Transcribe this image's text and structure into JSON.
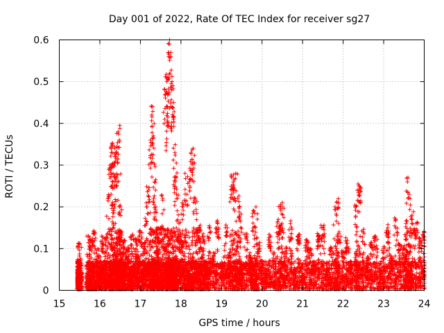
{
  "chart_data": {
    "type": "scatter",
    "title": "Day 001 of 2022, Rate Of TEC Index for receiver sg27",
    "xlabel": "GPS time / hours",
    "ylabel": "ROTI / TECUs",
    "xlim": [
      15,
      24
    ],
    "ylim": [
      0,
      0.6
    ],
    "xticks": [
      "15",
      "16",
      "17",
      "18",
      "19",
      "20",
      "21",
      "22",
      "23",
      "24"
    ],
    "yticks": [
      "0",
      "0.1",
      "0.2",
      "0.3",
      "0.4",
      "0.5",
      "0.6"
    ],
    "grid": true,
    "marker": "+",
    "color": "#ff0000",
    "series": [
      {
        "name": "ROTI",
        "x": [
          15.45,
          15.46,
          15.47,
          15.48,
          15.5,
          15.52,
          15.7,
          15.72,
          15.75,
          15.78,
          15.8,
          15.85,
          15.9,
          15.95,
          16.0,
          16.05,
          16.1,
          16.15,
          16.2,
          16.25,
          16.28,
          16.3,
          16.32,
          16.35,
          16.38,
          16.4,
          16.42,
          16.45,
          16.48,
          16.5,
          16.52,
          16.55,
          16.58,
          16.6,
          16.65,
          16.7,
          16.75,
          16.8,
          16.85,
          16.9,
          16.95,
          17.0,
          17.05,
          17.1,
          17.15,
          17.2,
          17.25,
          17.28,
          17.3,
          17.32,
          17.35,
          17.38,
          17.4,
          17.42,
          17.45,
          17.5,
          17.55,
          17.6,
          17.62,
          17.65,
          17.68,
          17.7,
          17.72,
          17.75,
          17.78,
          17.8,
          17.82,
          17.85,
          17.88,
          17.9,
          17.95,
          18.0,
          18.05,
          18.1,
          18.15,
          18.2,
          18.25,
          18.3,
          18.35,
          18.4,
          18.45,
          18.5,
          18.55,
          18.6,
          18.65,
          18.7,
          18.8,
          18.9,
          19.0,
          19.1,
          19.2,
          19.25,
          19.3,
          19.35,
          19.4,
          19.45,
          19.5,
          19.6,
          19.7,
          19.75,
          19.8,
          19.85,
          19.9,
          20.0,
          20.1,
          20.2,
          20.3,
          20.4,
          20.45,
          20.5,
          20.6,
          20.7,
          20.8,
          20.9,
          21.0,
          21.1,
          21.2,
          21.3,
          21.4,
          21.5,
          21.6,
          21.7,
          21.8,
          21.85,
          21.9,
          22.0,
          22.1,
          22.2,
          22.3,
          22.35,
          22.4,
          22.5,
          22.6,
          22.7,
          22.8,
          22.9,
          23.0,
          23.1,
          23.2,
          23.3,
          23.4,
          23.5,
          23.55,
          23.6,
          23.65,
          23.7,
          23.8,
          23.9,
          24.0
        ],
        "y": [
          0.03,
          0.07,
          0.05,
          0.02,
          0.11,
          0.04,
          0.02,
          0.13,
          0.03,
          0.12,
          0.05,
          0.14,
          0.02,
          0.1,
          0.04,
          0.13,
          0.06,
          0.12,
          0.22,
          0.3,
          0.34,
          0.33,
          0.26,
          0.2,
          0.32,
          0.33,
          0.27,
          0.38,
          0.36,
          0.2,
          0.14,
          0.09,
          0.05,
          0.12,
          0.08,
          0.1,
          0.04,
          0.13,
          0.06,
          0.12,
          0.08,
          0.14,
          0.05,
          0.11,
          0.2,
          0.24,
          0.36,
          0.42,
          0.44,
          0.37,
          0.26,
          0.2,
          0.15,
          0.09,
          0.12,
          0.15,
          0.22,
          0.41,
          0.47,
          0.5,
          0.51,
          0.56,
          0.6,
          0.57,
          0.5,
          0.49,
          0.45,
          0.33,
          0.27,
          0.22,
          0.16,
          0.12,
          0.2,
          0.28,
          0.23,
          0.26,
          0.33,
          0.34,
          0.22,
          0.14,
          0.15,
          0.1,
          0.13,
          0.07,
          0.05,
          0.15,
          0.09,
          0.16,
          0.06,
          0.15,
          0.09,
          0.27,
          0.24,
          0.28,
          0.22,
          0.2,
          0.06,
          0.13,
          0.09,
          0.06,
          0.19,
          0.2,
          0.11,
          0.07,
          0.04,
          0.13,
          0.09,
          0.17,
          0.2,
          0.21,
          0.1,
          0.16,
          0.05,
          0.13,
          0.04,
          0.12,
          0.1,
          0.06,
          0.13,
          0.15,
          0.05,
          0.1,
          0.2,
          0.21,
          0.14,
          0.09,
          0.12,
          0.06,
          0.2,
          0.24,
          0.25,
          0.14,
          0.08,
          0.11,
          0.13,
          0.05,
          0.1,
          0.15,
          0.08,
          0.17,
          0.11,
          0.1,
          0.16,
          0.27,
          0.22,
          0.18,
          0.16,
          0.12,
          0.14
        ]
      }
    ]
  }
}
